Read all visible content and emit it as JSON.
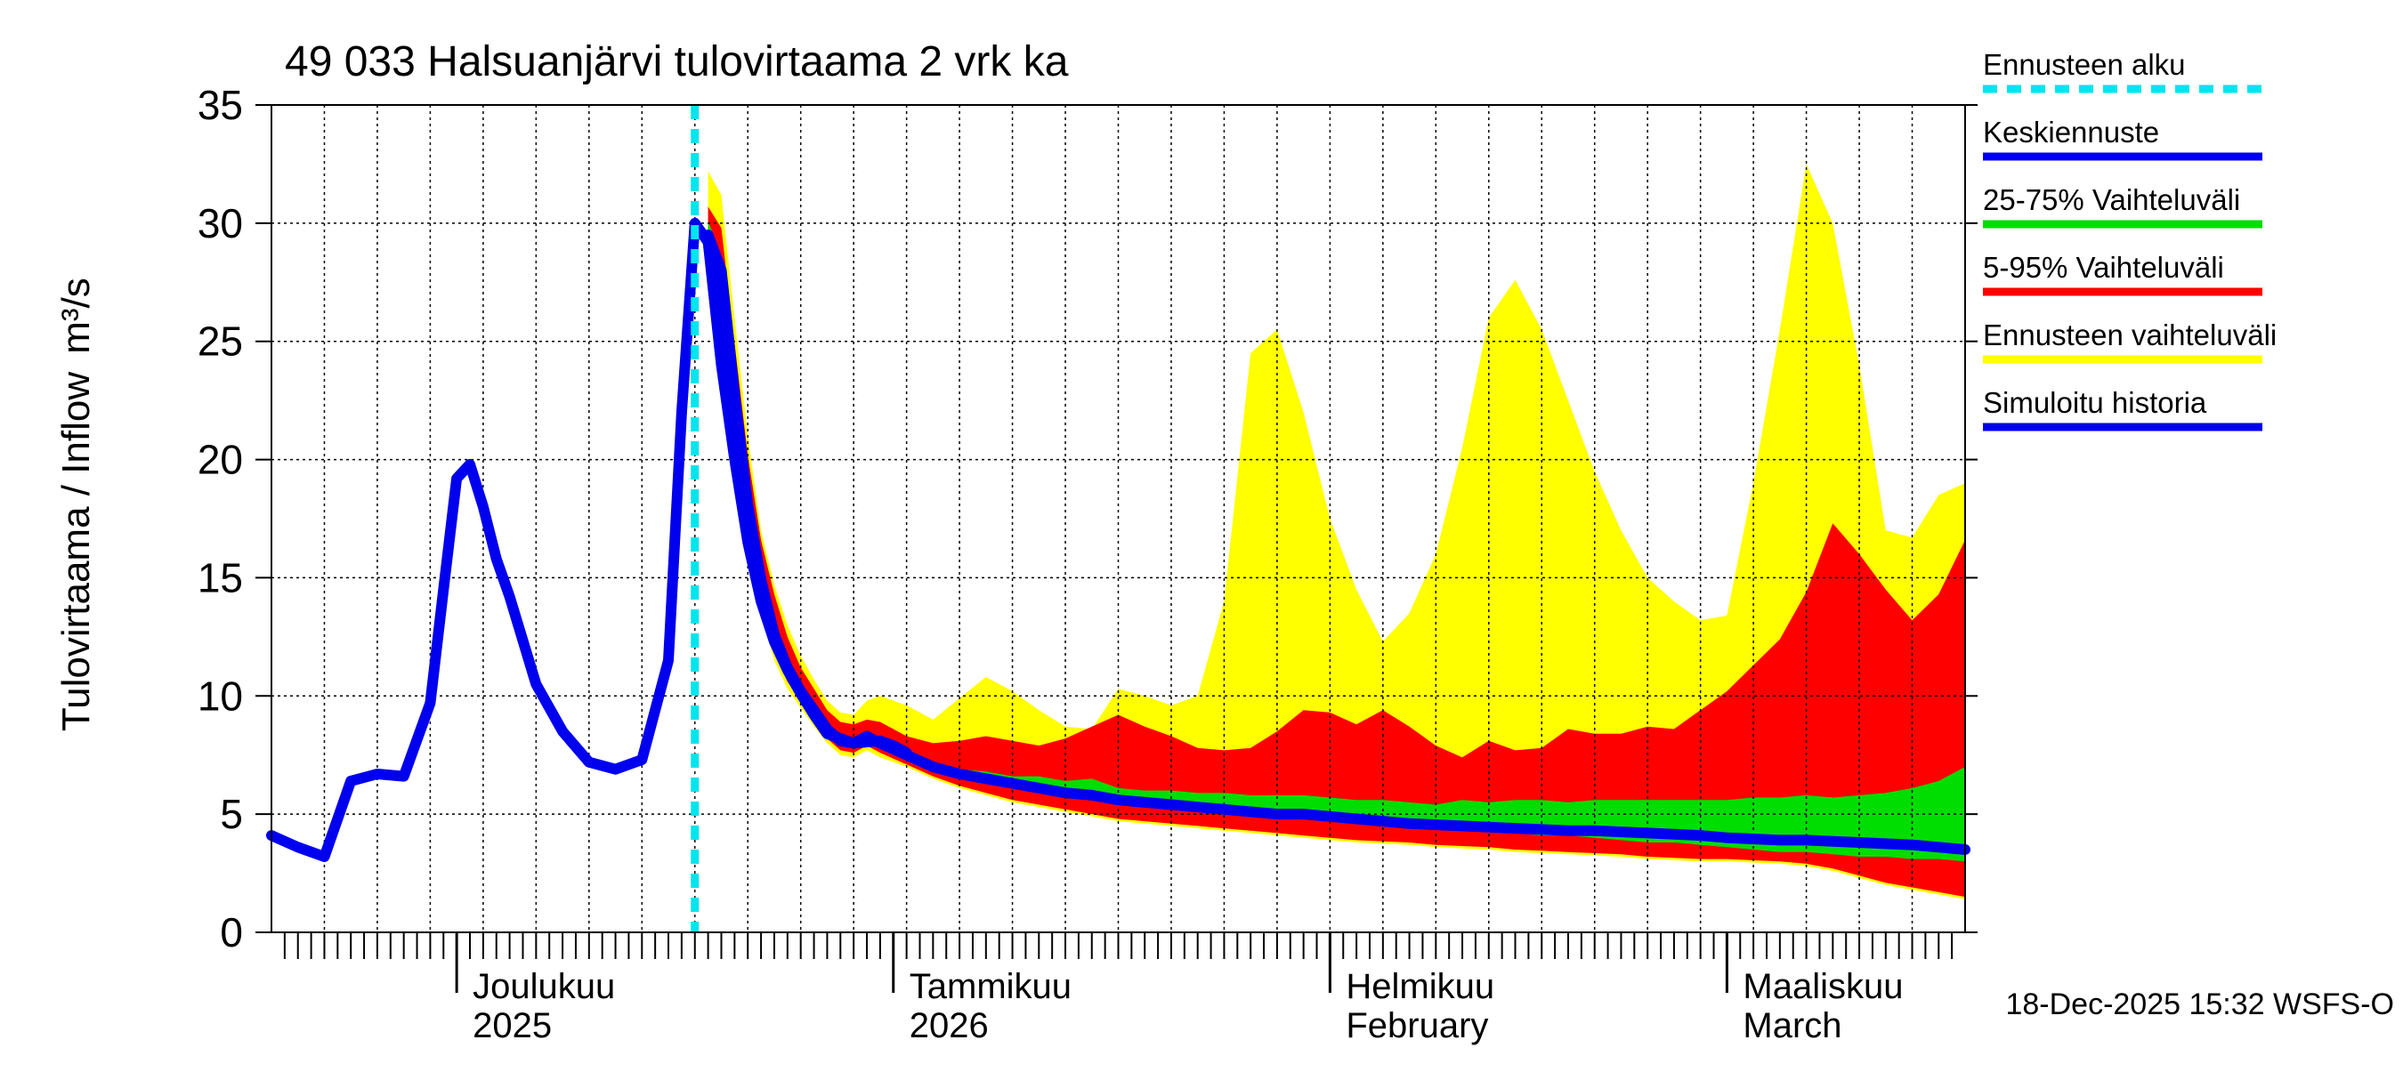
{
  "chart_data": {
    "type": "area",
    "title": "49 033 Halsuanjärvi tulovirtaama 2 vrk ka",
    "ylabel": "Tulovirtaama / Inflow",
    "yunit": "m³/s",
    "ylim": [
      0,
      35
    ],
    "yticks": [
      0,
      5,
      10,
      15,
      20,
      25,
      30,
      35
    ],
    "xlim": [
      0,
      128
    ],
    "forecast_start": 32,
    "month_ticks": [
      14,
      47,
      80,
      110
    ],
    "x_labels": [
      {
        "x": 14,
        "line1": "Joulukuu",
        "line2": "2025"
      },
      {
        "x": 47,
        "line1": "Tammikuu",
        "line2": "2026"
      },
      {
        "x": 80,
        "line1": "Helmikuu",
        "line2": "February"
      },
      {
        "x": 110,
        "line1": "Maaliskuu",
        "line2": "March"
      }
    ],
    "legend": [
      {
        "label": "Ennusteen alku",
        "color": "#00e5ee",
        "style": "dashed"
      },
      {
        "label": "Keskiennuste",
        "color": "#0000ee",
        "style": "solid"
      },
      {
        "label": "25-75% Vaihteluväli",
        "color": "#00dd00",
        "style": "solid"
      },
      {
        "label": "5-95% Vaihteluväli",
        "color": "#ff0000",
        "style": "solid"
      },
      {
        "label": "Ennusteen vaihteluväli",
        "color": "#ffff00",
        "style": "solid"
      },
      {
        "label": "Simuloitu historia",
        "color": "#0000ee",
        "style": "solid"
      }
    ],
    "footer": "18-Dec-2025 15:32 WSFS-O",
    "history": {
      "x": [
        0,
        2,
        4,
        6,
        8,
        10,
        12,
        13,
        14,
        15,
        16,
        17,
        18,
        20,
        22,
        24,
        26,
        28,
        30,
        31,
        32,
        33,
        34,
        35,
        36,
        37,
        38,
        39,
        40,
        41,
        42,
        44,
        46,
        47,
        48
      ],
      "y": [
        4.1,
        3.6,
        3.2,
        6.4,
        6.7,
        6.6,
        9.7,
        14.5,
        19.2,
        19.8,
        18.0,
        15.8,
        14.2,
        10.5,
        8.5,
        7.2,
        6.9,
        7.3,
        11.5,
        22,
        30,
        29.2,
        24,
        20,
        16.5,
        14,
        12.3,
        11.1,
        10.1,
        9.2,
        8.4,
        8.0,
        8.1,
        7.9,
        7.6
      ]
    },
    "bands": {
      "x": [
        33,
        34,
        35,
        36,
        37,
        38,
        39,
        40,
        41,
        42,
        43,
        44,
        45,
        46,
        48,
        50,
        52,
        54,
        56,
        58,
        60,
        62,
        64,
        66,
        68,
        70,
        72,
        74,
        76,
        78,
        80,
        82,
        84,
        86,
        88,
        90,
        92,
        94,
        96,
        98,
        100,
        102,
        104,
        106,
        108,
        110,
        112,
        114,
        116,
        118,
        120,
        122,
        124,
        126,
        128
      ],
      "min": [
        29.2,
        27,
        21,
        16.5,
        13.5,
        11.5,
        10.3,
        9.5,
        8.7,
        8.0,
        7.5,
        7.4,
        7.7,
        7.4,
        7.0,
        6.5,
        6.1,
        5.8,
        5.5,
        5.3,
        5.1,
        4.9,
        4.7,
        4.6,
        4.5,
        4.4,
        4.3,
        4.2,
        4.1,
        4.0,
        3.9,
        3.8,
        3.75,
        3.7,
        3.6,
        3.55,
        3.5,
        3.4,
        3.35,
        3.3,
        3.25,
        3.2,
        3.1,
        3.05,
        3.0,
        3.0,
        2.95,
        2.9,
        2.8,
        2.6,
        2.3,
        2.0,
        1.8,
        1.6,
        1.4
      ],
      "p05": [
        29.3,
        27.2,
        21.3,
        16.8,
        13.8,
        11.8,
        10.6,
        9.8,
        9.0,
        8.2,
        7.7,
        7.6,
        7.9,
        7.6,
        7.1,
        6.6,
        6.2,
        5.9,
        5.6,
        5.4,
        5.2,
        5.0,
        4.8,
        4.7,
        4.6,
        4.5,
        4.4,
        4.3,
        4.2,
        4.1,
        4.0,
        3.9,
        3.85,
        3.8,
        3.7,
        3.65,
        3.6,
        3.5,
        3.45,
        3.4,
        3.35,
        3.3,
        3.2,
        3.15,
        3.1,
        3.1,
        3.05,
        3.0,
        2.9,
        2.7,
        2.4,
        2.1,
        1.9,
        1.7,
        1.5
      ],
      "p25": [
        29.6,
        27.8,
        22.5,
        17.8,
        14.6,
        12.4,
        11.0,
        10.1,
        9.3,
        8.5,
        8.0,
        7.9,
        8.2,
        7.9,
        7.4,
        6.9,
        6.6,
        6.4,
        6.2,
        6.0,
        5.8,
        5.7,
        5.5,
        5.4,
        5.3,
        5.2,
        5.1,
        5.0,
        4.9,
        4.9,
        4.8,
        4.7,
        4.6,
        4.5,
        4.5,
        4.4,
        4.3,
        4.2,
        4.1,
        4.1,
        4.0,
        3.9,
        3.8,
        3.8,
        3.7,
        3.6,
        3.5,
        3.4,
        3.4,
        3.3,
        3.2,
        3.2,
        3.1,
        3.1,
        3.0
      ],
      "p75": [
        30.1,
        28.6,
        23.3,
        18.5,
        15.2,
        12.9,
        11.5,
        10.5,
        9.6,
        8.8,
        8.3,
        8.2,
        8.5,
        8.1,
        7.6,
        7.1,
        6.9,
        6.8,
        6.6,
        6.6,
        6.4,
        6.5,
        6.1,
        6.0,
        6.0,
        5.9,
        5.9,
        5.8,
        5.8,
        5.8,
        5.7,
        5.6,
        5.6,
        5.5,
        5.4,
        5.6,
        5.5,
        5.6,
        5.6,
        5.5,
        5.6,
        5.6,
        5.6,
        5.6,
        5.6,
        5.6,
        5.7,
        5.7,
        5.8,
        5.7,
        5.8,
        5.9,
        6.1,
        6.4,
        7.0
      ],
      "p95": [
        30.7,
        29.8,
        24.9,
        20.2,
        16.6,
        14.3,
        12.5,
        11.2,
        10.3,
        9.4,
        8.9,
        8.8,
        9.0,
        8.9,
        8.3,
        8.0,
        8.1,
        8.3,
        8.1,
        7.9,
        8.2,
        8.7,
        9.2,
        8.7,
        8.3,
        7.8,
        7.7,
        7.8,
        8.5,
        9.4,
        9.3,
        8.8,
        9.4,
        8.7,
        7.9,
        7.4,
        8.1,
        7.7,
        7.8,
        8.6,
        8.4,
        8.4,
        8.7,
        8.6,
        9.4,
        10.2,
        11.3,
        12.4,
        14.4,
        17.3,
        16.0,
        14.5,
        13.2,
        14.3,
        16.6
      ],
      "max": [
        32.2,
        31.2,
        26.0,
        21.0,
        17.0,
        14.7,
        13.0,
        11.7,
        10.7,
        9.8,
        9.3,
        9.2,
        9.8,
        10.0,
        9.6,
        9.0,
        9.9,
        10.8,
        10.2,
        9.4,
        8.7,
        8.6,
        10.3,
        10.0,
        9.6,
        10.0,
        14.0,
        24.5,
        25.5,
        22.0,
        17.5,
        14.5,
        12.3,
        13.5,
        16.0,
        20.5,
        26.0,
        27.6,
        25.5,
        22.5,
        19.5,
        17.0,
        15.0,
        14.0,
        13.2,
        13.4,
        19.0,
        25.5,
        32.5,
        30.0,
        24.0,
        17.0,
        16.7,
        18.5,
        19.0
      ]
    },
    "median": {
      "x": [
        33,
        34,
        35,
        36,
        37,
        38,
        39,
        40,
        41,
        42,
        43,
        44,
        45,
        46,
        48,
        50,
        52,
        54,
        56,
        58,
        60,
        62,
        64,
        66,
        68,
        70,
        72,
        74,
        76,
        78,
        80,
        82,
        84,
        86,
        88,
        90,
        92,
        94,
        96,
        98,
        100,
        102,
        104,
        106,
        108,
        110,
        112,
        114,
        116,
        118,
        120,
        122,
        124,
        126,
        128
      ],
      "y": [
        29.5,
        28.0,
        22.8,
        18.1,
        14.9,
        12.6,
        11.2,
        10.2,
        9.4,
        8.6,
        8.1,
        8.0,
        8.3,
        8.0,
        7.5,
        7.0,
        6.7,
        6.5,
        6.3,
        6.1,
        5.9,
        5.8,
        5.6,
        5.5,
        5.4,
        5.3,
        5.2,
        5.1,
        5.0,
        5.0,
        4.9,
        4.8,
        4.7,
        4.6,
        4.55,
        4.5,
        4.45,
        4.4,
        4.35,
        4.3,
        4.3,
        4.25,
        4.2,
        4.15,
        4.1,
        4.0,
        3.95,
        3.9,
        3.9,
        3.85,
        3.8,
        3.75,
        3.7,
        3.6,
        3.5
      ]
    }
  }
}
